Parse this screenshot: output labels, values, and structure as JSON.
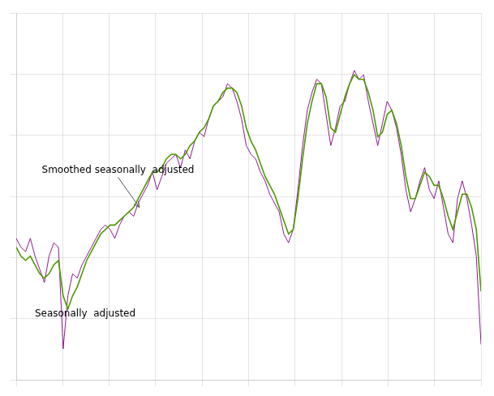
{
  "chart_data": {
    "type": "line",
    "x": [
      0,
      1,
      2,
      3,
      4,
      5,
      6,
      7,
      8,
      9,
      10,
      11,
      12,
      13,
      14,
      15,
      16,
      17,
      18,
      19,
      20,
      21,
      22,
      23,
      24,
      25,
      26,
      27,
      28,
      29,
      30,
      31,
      32,
      33,
      34,
      35,
      36,
      37,
      38,
      39,
      40,
      41,
      42,
      43,
      44,
      45,
      46,
      47,
      48,
      49,
      50,
      51,
      52,
      53,
      54,
      55,
      56,
      57,
      58,
      59,
      60,
      61,
      62,
      63,
      64,
      65,
      66,
      67,
      68,
      69,
      70,
      71,
      72,
      73,
      74,
      75,
      76,
      77,
      78,
      79,
      80,
      81,
      82,
      83,
      84,
      85,
      86,
      87,
      88,
      89,
      90,
      91,
      92,
      93,
      94,
      95,
      96,
      97,
      98,
      99
    ],
    "series": [
      {
        "color": "#800080",
        "values": [
          97,
          95,
          94,
          97,
          93,
          90,
          87,
          93,
          96,
          95,
          72,
          84,
          89,
          88,
          91,
          93,
          95,
          97,
          99,
          100,
          99,
          97,
          100,
          102,
          103,
          102,
          105,
          107,
          109,
          112,
          108,
          111,
          114,
          115,
          116,
          113,
          117,
          115,
          119,
          121,
          120,
          124,
          127,
          128,
          129,
          132,
          131,
          128,
          124,
          118,
          116,
          115,
          112,
          110,
          107,
          105,
          103,
          98,
          96,
          99,
          108,
          118,
          126,
          130,
          133,
          132,
          125,
          118,
          122,
          127,
          128,
          132,
          135,
          133,
          134,
          128,
          123,
          118,
          123,
          128,
          126,
          122,
          116,
          108,
          103,
          106,
          110,
          113,
          108,
          106,
          110,
          104,
          98,
          96,
          106,
          110,
          106,
          100,
          93,
          73
        ]
      },
      {
        "color": "#4d9900",
        "values": [
          95,
          93,
          92,
          93,
          91,
          89,
          88,
          89,
          91,
          92,
          84,
          81,
          84,
          86,
          89,
          92,
          94,
          96,
          98,
          99,
          100,
          100,
          101,
          102,
          103,
          104,
          106,
          108,
          110,
          112,
          112,
          113,
          115,
          116,
          116,
          115,
          116,
          118,
          119,
          121,
          122,
          124,
          127,
          128,
          130,
          131,
          131,
          130,
          127,
          122,
          119,
          117,
          114,
          111,
          109,
          107,
          104,
          101,
          98,
          99,
          106,
          115,
          123,
          128,
          132,
          132,
          129,
          122,
          121,
          125,
          129,
          132,
          134,
          133,
          133,
          130,
          126,
          120,
          121,
          125,
          126,
          123,
          118,
          111,
          106,
          106,
          109,
          112,
          111,
          109,
          109,
          106,
          102,
          99,
          103,
          107,
          107,
          104,
          99,
          85
        ]
      }
    ],
    "xlim": [
      0,
      99
    ],
    "xticks": [
      0,
      9.9,
      19.8,
      29.7,
      39.6,
      49.5,
      59.4,
      69.3,
      79.2,
      89.1,
      99
    ],
    "ylim": [
      65,
      148
    ],
    "yticks": [
      65,
      78.83333333333333,
      92.66666666666667,
      106.5,
      120.33333333333333,
      134.16666666666666,
      148
    ],
    "grid": true,
    "tick_labels": false,
    "annotations": [
      "Smoothed seasonally  adjusted",
      "Seasonally  adjusted"
    ]
  }
}
